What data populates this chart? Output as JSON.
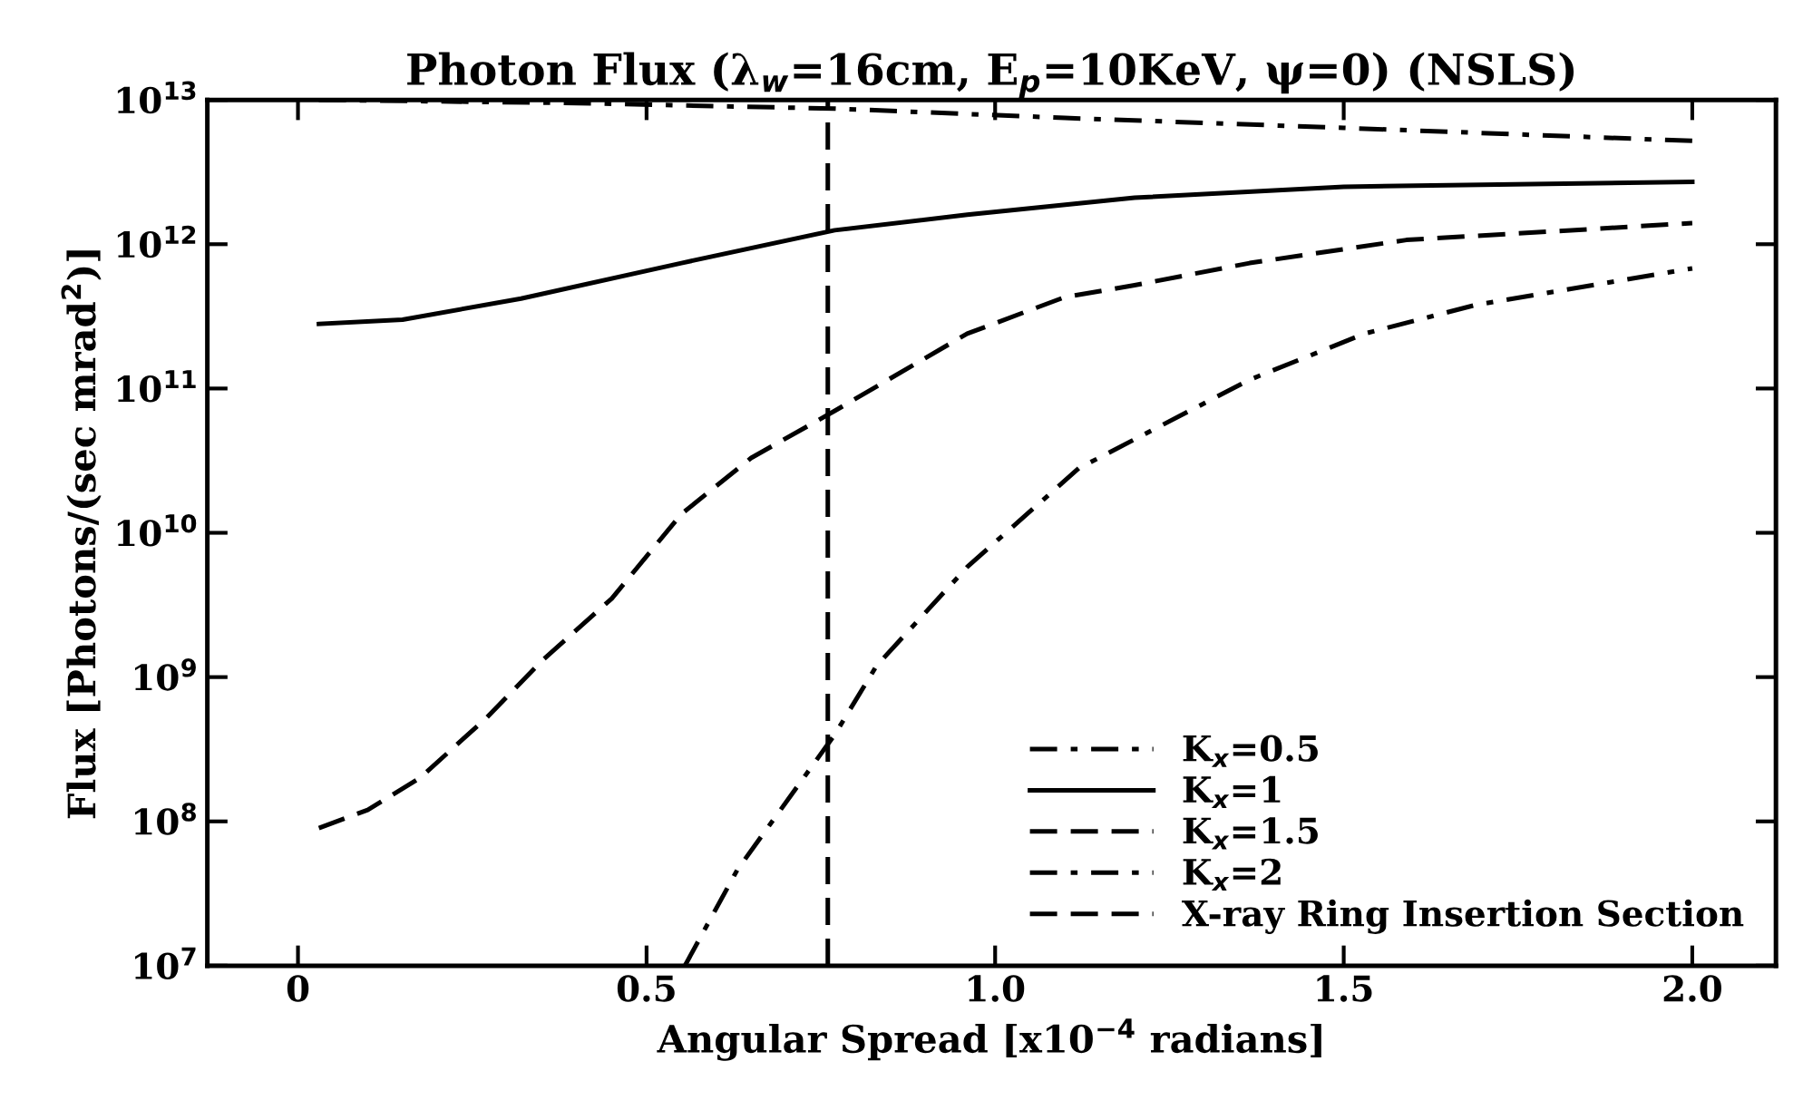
{
  "chart_data": {
    "type": "line",
    "title": "Photon Flux (λ$_{w}$=16cm, E$_{p}$=10KeV, ψ=0) (NSLS)",
    "xlabel": "Angular Spread [x10$^{−4}$ radians]",
    "ylabel": "Flux [Photons/(sec mrad$^{2}$)]",
    "log": "y",
    "xlim": [
      -0.13,
      2.12
    ],
    "ylim": [
      10000000.0,
      10000000000000.0
    ],
    "xticks": [
      0,
      0.5,
      {
        "value": 1.0,
        "label": "1.0"
      },
      1.5,
      {
        "value": 2.0,
        "label": "2.0"
      }
    ],
    "yticks": [
      {
        "value": 10000000.0,
        "label": "10$^{7}$"
      },
      {
        "value": 100000000.0,
        "label": "10$^{8}$"
      },
      {
        "value": 1000000000.0,
        "label": "10$^{9}$"
      },
      {
        "value": 10000000000.0,
        "label": "10$^{10}$"
      },
      {
        "value": 100000000000.0,
        "label": "10$^{11}$"
      },
      {
        "value": 1000000000000.0,
        "label": "10$^{12}$"
      },
      {
        "value": 10000000000000.0,
        "label": "10$^{13}$"
      }
    ],
    "grid": false,
    "legend": "bottom right",
    "marker": "none",
    "series": [
      {
        "name": "K$_{x}$=0.5",
        "color": "#000000",
        "line_style": "dashdot",
        "x": [
          0.03,
          0.4,
          0.77,
          1.1,
          1.5,
          2.0
        ],
        "values": [
          10000000000000.0,
          9500000000000.0,
          8700000000000.0,
          7500000000000.0,
          6400000000000.0,
          5200000000000.0
        ]
      },
      {
        "name": "K$_{x}$=1",
        "color": "#000000",
        "line_style": "solid",
        "x": [
          0.03,
          0.15,
          0.32,
          0.55,
          0.77,
          0.96,
          1.2,
          1.5,
          2.0
        ],
        "values": [
          280000000000.0,
          300000000000.0,
          420000000000.0,
          740000000000.0,
          1250000000000.0,
          1600000000000.0,
          2100000000000.0,
          2500000000000.0,
          2700000000000.0
        ]
      },
      {
        "name": "K$_{x}$=1.5",
        "color": "#000000",
        "line_style": "dashed",
        "x": [
          0.03,
          0.1,
          0.175,
          0.27,
          0.35,
          0.45,
          0.55,
          0.65,
          0.77,
          0.96,
          1.1,
          1.2,
          1.365,
          1.59,
          2.0
        ],
        "values": [
          90000000.0,
          120000000.0,
          200000000.0,
          520000000.0,
          1300000000.0,
          3500000000.0,
          13500000000.0,
          33000000000.0,
          70000000000.0,
          240000000000.0,
          430000000000.0,
          520000000000.0,
          740000000000.0,
          1070000000000.0,
          1400000000000.0
        ]
      },
      {
        "name": "K$_{x}$=2",
        "color": "#000000",
        "line_style": "dashdot",
        "x": [
          0.555,
          0.63,
          0.77,
          0.83,
          0.96,
          1.12,
          1.365,
          1.53,
          1.69,
          2.0
        ],
        "values": [
          10000000.0,
          46000000.0,
          400000000.0,
          1200000000.0,
          5800000000.0,
          28000000000.0,
          115000000000.0,
          240000000000.0,
          380000000000.0,
          680000000000.0
        ]
      },
      {
        "name": "X-ray Ring Insertion Section",
        "color": "#000000",
        "line_style": "dashed",
        "x": [
          0.76,
          0.76
        ],
        "values": [
          10000000.0,
          10000000000000.0
        ]
      }
    ]
  }
}
